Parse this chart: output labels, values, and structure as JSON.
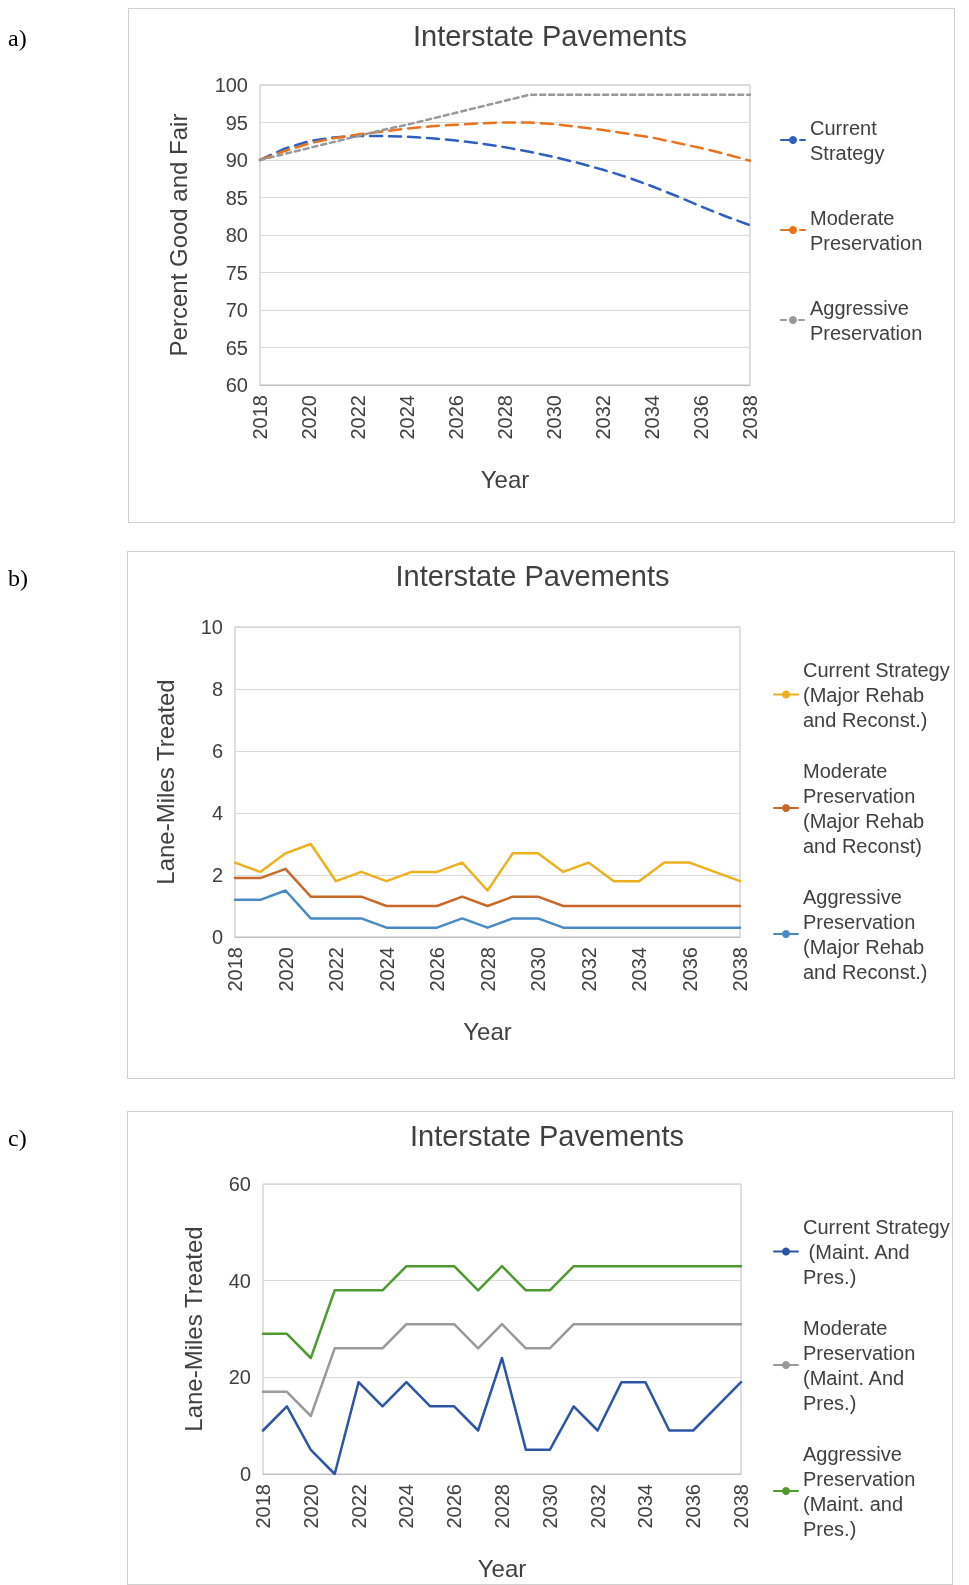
{
  "chart_data": [
    {
      "type": "line",
      "title": "Interstate Pavements",
      "xlabel": "Year",
      "ylabel": "Percent Good and Fair",
      "annotations": [
        "a)"
      ],
      "grid": "y",
      "legend": "right",
      "x": [
        2018,
        2019,
        2020,
        2021,
        2022,
        2023,
        2024,
        2025,
        2026,
        2027,
        2028,
        2029,
        2030,
        2031,
        2032,
        2033,
        2034,
        2035,
        2036,
        2037,
        2038
      ],
      "xlim": [
        2018,
        2038
      ],
      "xticks": [
        2018,
        2020,
        2022,
        2024,
        2026,
        2028,
        2030,
        2032,
        2034,
        2036,
        2038
      ],
      "ylim": [
        60,
        100
      ],
      "yticks": [
        60,
        65,
        70,
        75,
        80,
        85,
        90,
        95,
        100
      ],
      "series": [
        {
          "name": "Current Strategy",
          "color": "#2f5fbf",
          "line_style": "dashed",
          "values": [
            90,
            91.5,
            92.5,
            93.0,
            93.2,
            93.2,
            93.1,
            92.9,
            92.6,
            92.2,
            91.7,
            91.1,
            90.4,
            89.6,
            88.7,
            87.7,
            86.5,
            85.2,
            83.8,
            82.5,
            81.3
          ]
        },
        {
          "name": "Moderate Preservation",
          "color": "#e8731f",
          "line_style": "dashed",
          "values": [
            90,
            91.2,
            92.2,
            92.9,
            93.4,
            93.8,
            94.2,
            94.5,
            94.7,
            94.9,
            95.0,
            95.0,
            94.8,
            94.4,
            94.0,
            93.5,
            93.0,
            92.3,
            91.6,
            90.8,
            89.9
          ]
        },
        {
          "name": "Aggressive Preservation",
          "color": "#999999",
          "line_style": "dotted",
          "values": [
            90,
            90.8,
            91.6,
            92.4,
            93.2,
            94.0,
            94.7,
            95.5,
            96.3,
            97.1,
            97.9,
            98.7,
            98.7,
            98.7,
            98.7,
            98.7,
            98.7,
            98.7,
            98.7,
            98.7,
            98.7
          ]
        }
      ]
    },
    {
      "type": "line",
      "title": "Interstate Pavements",
      "xlabel": "Year",
      "ylabel": "Lane-Miles Treated",
      "annotations": [
        "b)"
      ],
      "grid": "y",
      "legend": "right",
      "x": [
        2018,
        2019,
        2020,
        2021,
        2022,
        2023,
        2024,
        2025,
        2026,
        2027,
        2028,
        2029,
        2030,
        2031,
        2032,
        2033,
        2034,
        2035,
        2036,
        2037,
        2038
      ],
      "xlim": [
        2018,
        2038
      ],
      "xticks": [
        2018,
        2020,
        2022,
        2024,
        2026,
        2028,
        2030,
        2032,
        2034,
        2036,
        2038
      ],
      "ylim": [
        0,
        10
      ],
      "yticks": [
        0,
        2,
        4,
        6,
        8,
        10
      ],
      "series": [
        {
          "name": "Current Strategy (Major Rehab and Reconst.)",
          "color": "#edb120",
          "values": [
            2.4,
            2.1,
            2.7,
            3.0,
            1.8,
            2.1,
            1.8,
            2.1,
            2.1,
            2.4,
            1.5,
            2.7,
            2.7,
            2.1,
            2.4,
            1.8,
            1.8,
            2.4,
            2.4,
            2.1,
            1.8
          ]
        },
        {
          "name": "Moderate Preservation (Major Rehab and Reconst)",
          "color": "#c8692a",
          "values": [
            1.9,
            1.9,
            2.2,
            1.3,
            1.3,
            1.3,
            1.0,
            1.0,
            1.0,
            1.3,
            1.0,
            1.3,
            1.3,
            1.0,
            1.0,
            1.0,
            1.0,
            1.0,
            1.0,
            1.0,
            1.0
          ]
        },
        {
          "name": "Aggressive Preservation (Major Rehab and Reconst.)",
          "color": "#4a8ac4",
          "values": [
            1.2,
            1.2,
            1.5,
            0.6,
            0.6,
            0.6,
            0.3,
            0.3,
            0.3,
            0.6,
            0.3,
            0.6,
            0.6,
            0.3,
            0.3,
            0.3,
            0.3,
            0.3,
            0.3,
            0.3,
            0.3
          ]
        }
      ]
    },
    {
      "type": "line",
      "title": "Interstate Pavements",
      "xlabel": "Year",
      "ylabel": "Lane-Miles Treated",
      "annotations": [
        "c)"
      ],
      "grid": "y",
      "legend": "right",
      "x": [
        2018,
        2019,
        2020,
        2021,
        2022,
        2023,
        2024,
        2025,
        2026,
        2027,
        2028,
        2029,
        2030,
        2031,
        2032,
        2033,
        2034,
        2035,
        2036,
        2037,
        2038
      ],
      "xlim": [
        2018,
        2038
      ],
      "xticks": [
        2018,
        2020,
        2022,
        2024,
        2026,
        2028,
        2030,
        2032,
        2034,
        2036,
        2038
      ],
      "ylim": [
        0,
        60
      ],
      "yticks": [
        0,
        20,
        40,
        60
      ],
      "series": [
        {
          "name": "Current Strategy (Maint. And Pres.)",
          "color": "#2e55a5",
          "values": [
            9,
            14,
            5,
            0,
            19,
            14,
            19,
            14,
            14,
            9,
            24,
            5,
            5,
            14,
            9,
            19,
            19,
            9,
            9,
            14,
            19
          ]
        },
        {
          "name": "Moderate Preservation (Maint. And Pres.)",
          "color": "#9a9a9a",
          "values": [
            17,
            17,
            12,
            26,
            26,
            26,
            31,
            31,
            31,
            26,
            31,
            26,
            26,
            31,
            31,
            31,
            31,
            31,
            31,
            31,
            31
          ]
        },
        {
          "name": "Aggressive Preservation (Maint. and Pres.)",
          "color": "#4e9a2e",
          "values": [
            29,
            29,
            24,
            38,
            38,
            38,
            43,
            43,
            43,
            38,
            43,
            38,
            38,
            43,
            43,
            43,
            43,
            43,
            43,
            43,
            43
          ]
        }
      ]
    }
  ]
}
